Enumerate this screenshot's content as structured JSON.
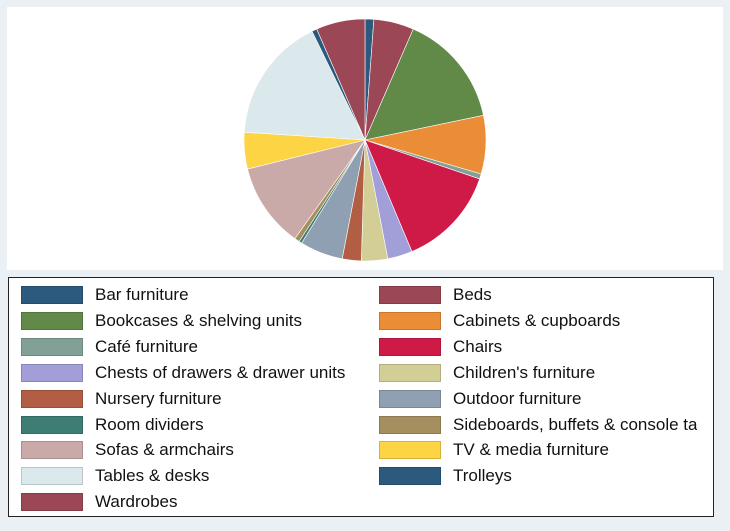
{
  "chart_data": {
    "type": "pie",
    "title": "",
    "legend_position": "bottom",
    "slices": [
      {
        "name": "Bar furniture",
        "value": 1.2,
        "color": "#2b5a7e"
      },
      {
        "name": "Beds",
        "value": 5.5,
        "color": "#9c4755"
      },
      {
        "name": "Bookcases & shelving units",
        "value": 15.6,
        "color": "#618a48"
      },
      {
        "name": "Cabinets & cupboards",
        "value": 8.0,
        "color": "#eb8c37"
      },
      {
        "name": "Café furniture",
        "value": 0.7,
        "color": "#83a096"
      },
      {
        "name": "Chairs",
        "value": 13.8,
        "color": "#cf1a48"
      },
      {
        "name": "Chests of drawers & drawer units",
        "value": 3.4,
        "color": "#a29ed8"
      },
      {
        "name": "Children's furniture",
        "value": 3.6,
        "color": "#d3cd96"
      },
      {
        "name": "Nursery furniture",
        "value": 2.6,
        "color": "#b25e45"
      },
      {
        "name": "Outdoor furniture",
        "value": 5.9,
        "color": "#8ea0b2"
      },
      {
        "name": "Room dividers",
        "value": 0.4,
        "color": "#3d7d74"
      },
      {
        "name": "Sideboards, buffets & console ta",
        "value": 0.7,
        "color": "#a58f5e"
      },
      {
        "name": "Sofas & armchairs",
        "value": 11.6,
        "color": "#c9aaa8"
      },
      {
        "name": "TV & media furniture",
        "value": 5.0,
        "color": "#fdd444"
      },
      {
        "name": "Tables & desks",
        "value": 17.2,
        "color": "#dbe8ec"
      },
      {
        "name": "Trolleys",
        "value": 0.7,
        "color": "#2b5a7e"
      },
      {
        "name": "Wardrobes",
        "value": 6.7,
        "color": "#9c4755"
      }
    ]
  },
  "legend": {
    "items": [
      {
        "label": "Bar furniture",
        "color": "#2b5a7e"
      },
      {
        "label": "Beds",
        "color": "#9c4755"
      },
      {
        "label": "Bookcases & shelving units",
        "color": "#618a48"
      },
      {
        "label": "Cabinets & cupboards",
        "color": "#eb8c37"
      },
      {
        "label": "Café furniture",
        "color": "#83a096"
      },
      {
        "label": "Chairs",
        "color": "#cf1a48"
      },
      {
        "label": "Chests of drawers & drawer units",
        "color": "#a29ed8"
      },
      {
        "label": "Children's furniture",
        "color": "#d3cd96"
      },
      {
        "label": "Nursery furniture",
        "color": "#b25e45"
      },
      {
        "label": "Outdoor furniture",
        "color": "#8ea0b2"
      },
      {
        "label": "Room dividers",
        "color": "#3d7d74"
      },
      {
        "label": "Sideboards, buffets & console ta",
        "color": "#a58f5e"
      },
      {
        "label": "Sofas & armchairs",
        "color": "#c9aaa8"
      },
      {
        "label": "TV & media furniture",
        "color": "#fdd444"
      },
      {
        "label": "Tables & desks",
        "color": "#dbe8ec"
      },
      {
        "label": "Trolleys",
        "color": "#2b5a7e"
      },
      {
        "label": "Wardrobes",
        "color": "#9c4755"
      }
    ]
  }
}
